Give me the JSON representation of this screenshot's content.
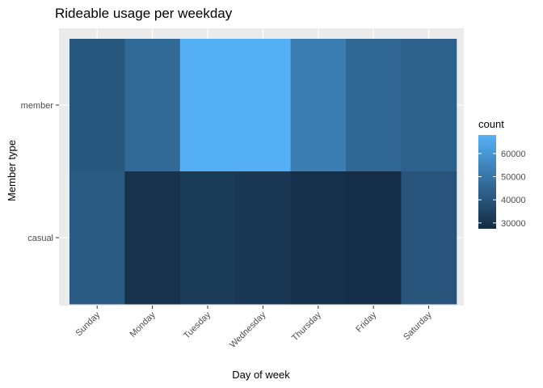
{
  "chart_data": {
    "type": "heatmap",
    "title": "Rideable usage per weekday",
    "xlabel": "Day of week",
    "ylabel": "Member type",
    "x_categories": [
      "Sunday",
      "Monday",
      "Tuesday",
      "Wednesday",
      "Thursday",
      "Friday",
      "Saturday"
    ],
    "y_categories": [
      "member",
      "casual"
    ],
    "cells": [
      {
        "x": "Sunday",
        "y": "member",
        "value": 41000
      },
      {
        "x": "Monday",
        "y": "member",
        "value": 46500
      },
      {
        "x": "Tuesday",
        "y": "member",
        "value": 67500
      },
      {
        "x": "Wednesday",
        "y": "member",
        "value": 67500
      },
      {
        "x": "Thursday",
        "y": "member",
        "value": 52500
      },
      {
        "x": "Friday",
        "y": "member",
        "value": 45500
      },
      {
        "x": "Saturday",
        "y": "member",
        "value": 43500
      },
      {
        "x": "Sunday",
        "y": "casual",
        "value": 42000
      },
      {
        "x": "Monday",
        "y": "casual",
        "value": 29500
      },
      {
        "x": "Tuesday",
        "y": "casual",
        "value": 32500
      },
      {
        "x": "Wednesday",
        "y": "casual",
        "value": 31500
      },
      {
        "x": "Thursday",
        "y": "casual",
        "value": 29000
      },
      {
        "x": "Friday",
        "y": "casual",
        "value": 28500
      },
      {
        "x": "Saturday",
        "y": "casual",
        "value": 40000
      }
    ],
    "legend": {
      "title": "count",
      "placement": "right",
      "breaks": [
        30000,
        40000,
        50000,
        60000
      ],
      "break_labels": [
        "30000",
        "40000",
        "50000",
        "60000"
      ],
      "min": 27500,
      "max": 68000,
      "low_color": "#132B43",
      "high_color": "#56B1F7"
    },
    "grid": true,
    "panel_background": "#EBEBEB"
  }
}
